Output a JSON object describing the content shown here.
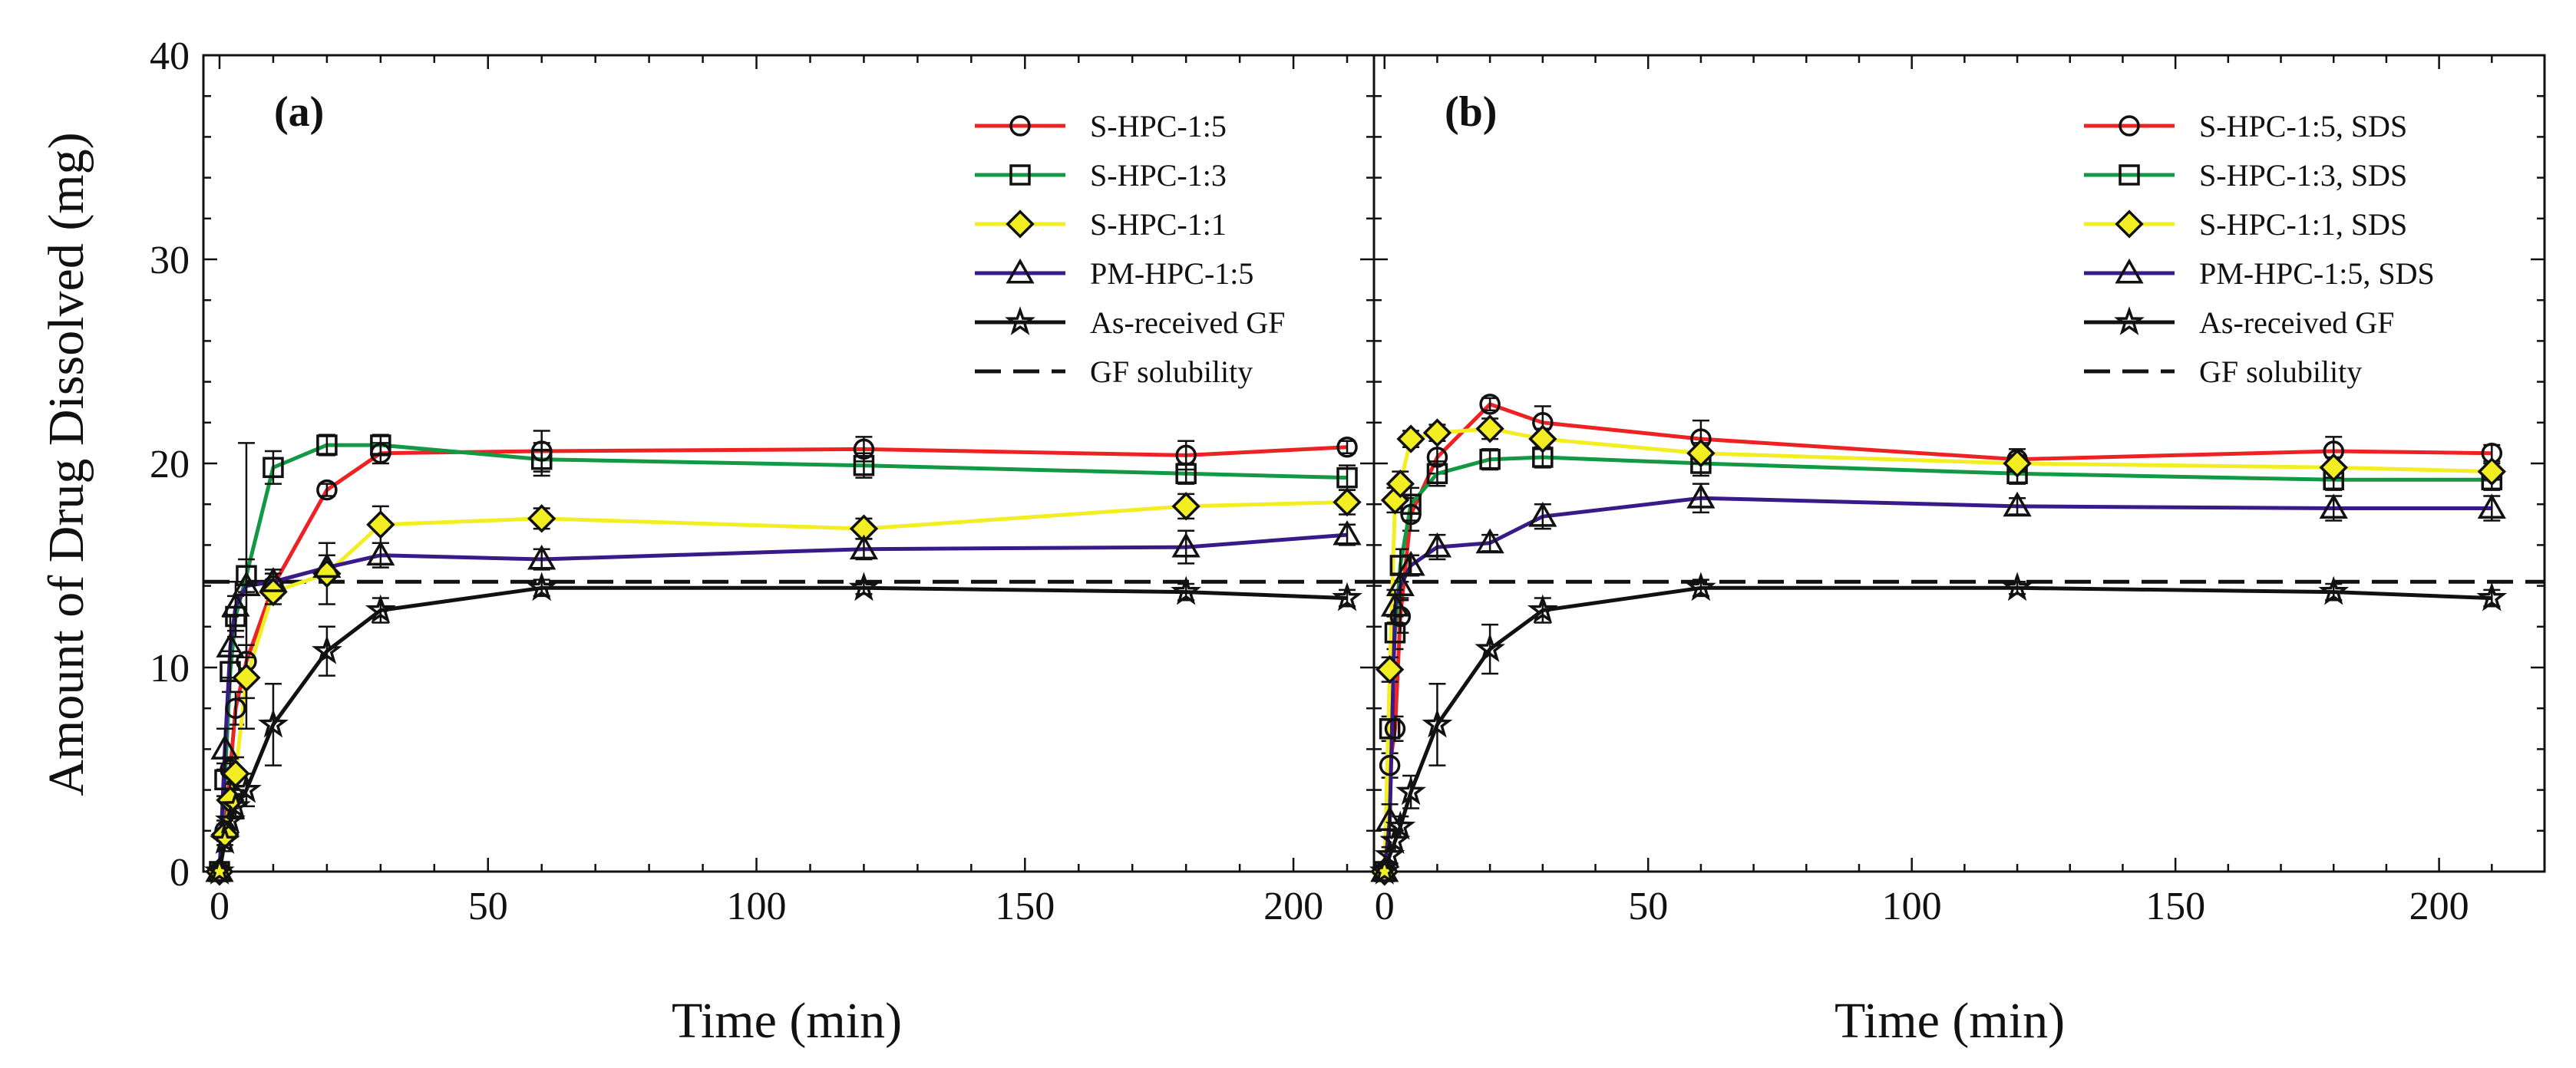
{
  "figure": {
    "ylabel": "Amount of Drug Dissolved (mg)",
    "xlabel": "Time (min)"
  },
  "chart_data": [
    {
      "type": "line",
      "panel": "(a)",
      "xlabel": "Time (min)",
      "ylabel": "Amount of Drug Dissolved (mg)",
      "xlim": [
        -3,
        215
      ],
      "ylim": [
        0,
        40
      ],
      "xticks": [
        0,
        50,
        100,
        150,
        200
      ],
      "yticks": [
        0,
        10,
        20,
        30,
        40
      ],
      "legend_position": "top-right",
      "x": [
        0,
        1,
        2,
        3,
        5,
        10,
        20,
        30,
        60,
        120,
        180,
        210
      ],
      "series": [
        {
          "name": "S-HPC-1:5",
          "color": "#ee2222",
          "marker": "circle",
          "values": [
            0,
            2,
            5,
            8,
            10.3,
            14.0,
            18.7,
            20.5,
            20.6,
            20.7,
            20.4,
            20.8
          ],
          "errors": [
            0,
            0.5,
            0.6,
            0.8,
            0.8,
            0.6,
            0.3,
            0.5,
            1.0,
            0.6,
            0.7,
            0.3
          ]
        },
        {
          "name": "S-HPC-1:3",
          "color": "#119944",
          "marker": "square",
          "values": [
            0,
            4.5,
            9.8,
            12.5,
            14.5,
            19.8,
            20.9,
            20.9,
            20.2,
            19.9,
            19.5,
            19.3
          ],
          "errors": [
            0,
            0.8,
            1.0,
            1.0,
            0.8,
            0.8,
            0.5,
            0.5,
            0.8,
            0.6,
            0.5,
            0.6
          ]
        },
        {
          "name": "S-HPC-1:1",
          "color": "#f2ee22",
          "marker": "diamond",
          "values": [
            0,
            1.8,
            3.5,
            4.8,
            9.5,
            13.7,
            14.6,
            17.0,
            17.3,
            16.8,
            17.9,
            18.1
          ],
          "errors": [
            0,
            0.5,
            0.8,
            0.8,
            1.0,
            0.6,
            1.5,
            0.9,
            0.5,
            0.5,
            0.6,
            0.6
          ]
        },
        {
          "name": "PM-HPC-1:5",
          "color": "#3a1a88",
          "marker": "triangle",
          "values": [
            0,
            6.0,
            11.0,
            13.0,
            14.0,
            14.2,
            14.9,
            15.5,
            15.3,
            15.8,
            15.9,
            16.5
          ],
          "errors": [
            0,
            1.0,
            1.5,
            1.2,
            7.0,
            0.6,
            0.6,
            0.6,
            0.5,
            0.5,
            0.8,
            0.5
          ]
        },
        {
          "name": "As-received GF",
          "color": "#111111",
          "marker": "star",
          "values": [
            0,
            1.5,
            2.5,
            3.2,
            4.0,
            7.2,
            10.8,
            12.8,
            13.9,
            13.9,
            13.7,
            13.4
          ],
          "errors": [
            0,
            0.5,
            0.6,
            0.6,
            0.8,
            2.0,
            1.2,
            0.6,
            0.4,
            0.3,
            0.4,
            0.4
          ]
        }
      ],
      "reference_line": {
        "name": "GF solubility",
        "value": 14.2,
        "style": "dashed"
      }
    },
    {
      "type": "line",
      "panel": "(b)",
      "xlabel": "Time (min)",
      "ylabel": "",
      "xlim": [
        -2,
        220
      ],
      "ylim": [
        0,
        40
      ],
      "xticks": [
        0,
        50,
        100,
        150,
        200
      ],
      "yticks": [
        0,
        10,
        20,
        30,
        40
      ],
      "legend_position": "top-right",
      "x": [
        0,
        1,
        2,
        3,
        5,
        10,
        20,
        30,
        60,
        120,
        180,
        210
      ],
      "series": [
        {
          "name": "S-HPC-1:5, SDS",
          "color": "#ee2222",
          "marker": "circle",
          "values": [
            0,
            5.2,
            7.0,
            12.5,
            17.5,
            20.3,
            22.9,
            22.0,
            21.2,
            20.2,
            20.6,
            20.5
          ],
          "errors": [
            0,
            0.6,
            0.6,
            0.8,
            0.8,
            0.8,
            0.3,
            0.8,
            0.9,
            0.5,
            0.7,
            0.4
          ]
        },
        {
          "name": "S-HPC-1:3, SDS",
          "color": "#119944",
          "marker": "square",
          "values": [
            0,
            7.0,
            11.7,
            15.0,
            18.0,
            19.5,
            20.2,
            20.3,
            20.0,
            19.5,
            19.2,
            19.2
          ],
          "errors": [
            0,
            0.6,
            0.8,
            0.8,
            0.8,
            0.6,
            0.5,
            0.5,
            0.6,
            0.5,
            0.5,
            0.5
          ]
        },
        {
          "name": "S-HPC-1:1, SDS",
          "color": "#f2ee22",
          "marker": "diamond",
          "values": [
            0,
            9.9,
            18.2,
            19.0,
            21.2,
            21.5,
            21.7,
            21.2,
            20.5,
            20.0,
            19.8,
            19.6
          ],
          "errors": [
            0,
            0.6,
            0.6,
            0.6,
            0.4,
            0.4,
            0.5,
            0.5,
            0.5,
            0.4,
            0.5,
            0.4
          ]
        },
        {
          "name": "PM-HPC-1:5, SDS",
          "color": "#3a1a88",
          "marker": "triangle",
          "values": [
            0,
            2.5,
            13.0,
            14.0,
            15.0,
            15.9,
            16.1,
            17.4,
            18.3,
            17.9,
            17.8,
            17.8
          ],
          "errors": [
            0,
            0.8,
            0.8,
            0.6,
            0.5,
            0.6,
            0.4,
            0.6,
            0.7,
            0.4,
            0.6,
            0.6
          ]
        },
        {
          "name": "As-received GF",
          "color": "#111111",
          "marker": "star",
          "values": [
            0,
            0.8,
            1.5,
            2.2,
            3.9,
            7.2,
            10.9,
            12.8,
            13.9,
            13.9,
            13.7,
            13.4
          ],
          "errors": [
            0,
            0.4,
            0.5,
            0.5,
            0.8,
            2.0,
            1.2,
            0.6,
            0.4,
            0.3,
            0.4,
            0.4
          ]
        }
      ],
      "reference_line": {
        "name": "GF solubility",
        "value": 14.2,
        "style": "dashed"
      }
    }
  ]
}
